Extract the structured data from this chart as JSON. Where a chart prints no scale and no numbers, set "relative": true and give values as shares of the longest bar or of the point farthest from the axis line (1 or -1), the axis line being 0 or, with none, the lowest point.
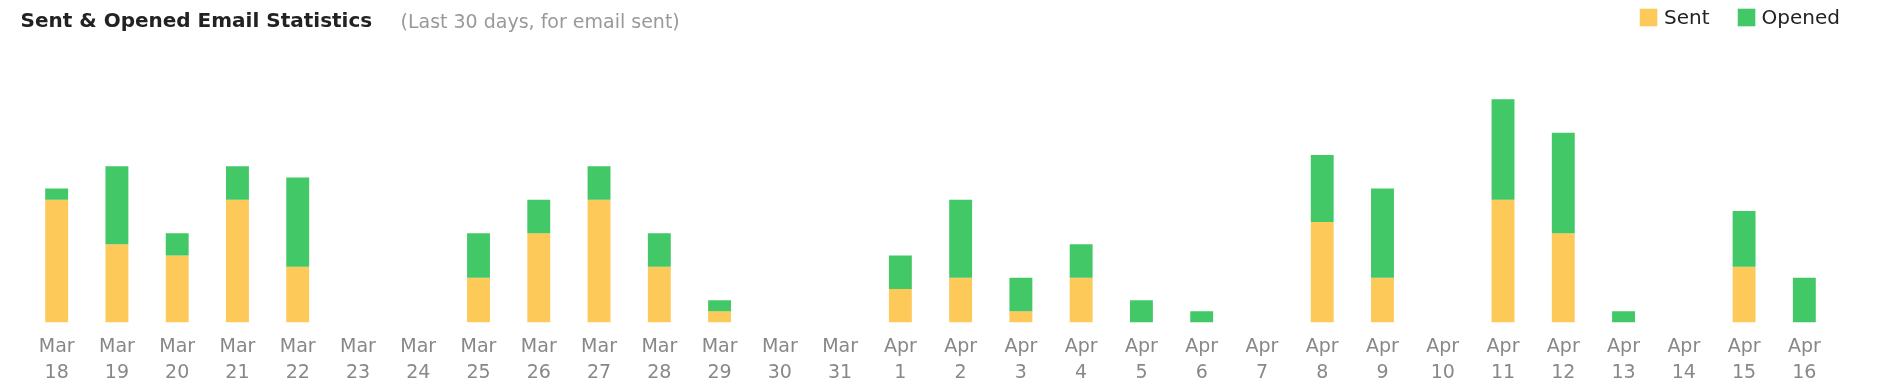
{
  "chart_data": {
    "type": "bar",
    "title": "Sent & Opened Email Statistics",
    "subtitle": "(Last 30 days, for email sent)",
    "categories": [
      "Mar 18",
      "Mar 19",
      "Mar 20",
      "Mar 21",
      "Mar 22",
      "Mar 23",
      "Mar 24",
      "Mar 25",
      "Mar 26",
      "Mar 27",
      "Mar 28",
      "Mar 29",
      "Mar 30",
      "Mar 31",
      "Apr 1",
      "Apr 2",
      "Apr 3",
      "Apr 4",
      "Apr 5",
      "Apr 6",
      "Apr 7",
      "Apr 8",
      "Apr 9",
      "Apr 10",
      "Apr 11",
      "Apr 12",
      "Apr 13",
      "Apr 14",
      "Apr 15",
      "Apr 16"
    ],
    "relative": true,
    "stacked": true,
    "legend": "top right",
    "grid": false,
    "series": [
      {
        "name": "Sent",
        "color": "#fdc958",
        "values": [
          0.55,
          0.35,
          0.3,
          0.55,
          0.25,
          0,
          0,
          0.2,
          0.4,
          0.55,
          0.25,
          0.05,
          0,
          0,
          0.15,
          0.2,
          0.05,
          0.2,
          0,
          0,
          0,
          0.45,
          0.2,
          0,
          0.55,
          0.4,
          0,
          0,
          0.25,
          0
        ]
      },
      {
        "name": "Opened",
        "color": "#42c866",
        "values": [
          0.05,
          0.35,
          0.1,
          0.15,
          0.4,
          0,
          0,
          0.2,
          0.15,
          0.15,
          0.15,
          0.05,
          0,
          0,
          0.15,
          0.35,
          0.15,
          0.15,
          0.1,
          0.05,
          0,
          0.3,
          0.4,
          0,
          0.45,
          0.45,
          0.05,
          0,
          0.25,
          0.2
        ]
      }
    ]
  }
}
